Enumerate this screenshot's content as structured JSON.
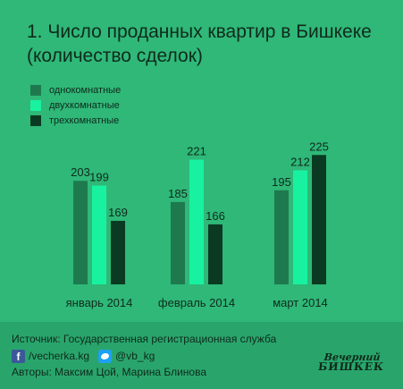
{
  "title_line1": "1. Число проданных квартир в Бишкеке",
  "title_line2": "(количество сделок)",
  "chart_data": {
    "type": "bar",
    "categories": [
      "январь 2014",
      "февраль 2014",
      "март 2014"
    ],
    "series": [
      {
        "name": "однокомнатные",
        "values": [
          203,
          185,
          195
        ],
        "color": "#1e7a4e"
      },
      {
        "name": "двухкомнатные",
        "values": [
          199,
          221,
          212
        ],
        "color": "#18f2a0"
      },
      {
        "name": "трехкомнатные",
        "values": [
          169,
          166,
          225
        ],
        "color": "#0b3a22"
      }
    ],
    "ylim": [
      115,
      245
    ],
    "grid": false,
    "legend": "top-left"
  },
  "footer": {
    "source": "Источник: Государственная регистрационная служба",
    "facebook": "/vecherka.kg",
    "twitter": "@vb_kg",
    "authors": "Авторы: Максим Цой, Марина Блинова",
    "logo_line1": "Вечерний",
    "logo_line2": "БИШКЕК"
  },
  "icons": [
    "facebook-icon",
    "twitter-icon"
  ]
}
